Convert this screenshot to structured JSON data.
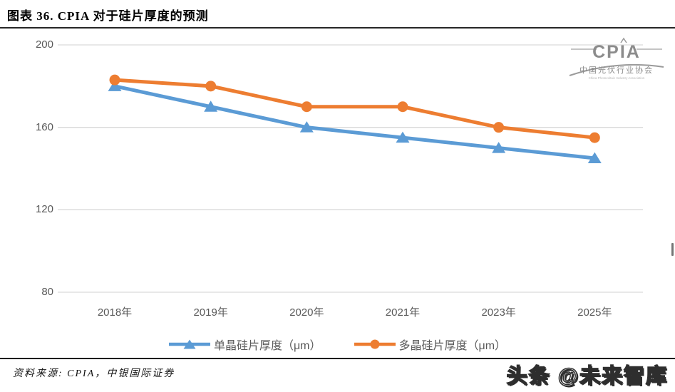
{
  "header": {
    "title": "图表 36. CPIA 对于硅片厚度的预测"
  },
  "logo": {
    "name": "CPIA",
    "subtitle": "中国光伏行业协会",
    "subtext": "China Photovoltaic Industry Association"
  },
  "chart_data": {
    "type": "line",
    "title": "CPIA 对于硅片厚度的预测",
    "categories": [
      "2018年",
      "2019年",
      "2020年",
      "2021年",
      "2023年",
      "2025年"
    ],
    "series": [
      {
        "name": "单晶硅片厚度（μm）",
        "values": [
          180,
          170,
          160,
          155,
          150,
          145
        ],
        "color": "#5B9BD5",
        "marker": "triangle"
      },
      {
        "name": "多晶硅片厚度（μm）",
        "values": [
          183,
          180,
          170,
          170,
          160,
          155
        ],
        "color": "#ED7D31",
        "marker": "circle"
      }
    ],
    "xlabel": "",
    "ylabel": "",
    "ylim": [
      80,
      200
    ],
    "yticks": [
      200,
      160,
      120,
      80
    ],
    "grid": true,
    "legend_position": "bottom",
    "colors": {
      "gridline": "#D9D9D9",
      "axis_label": "#595959"
    }
  },
  "footer": {
    "source": "资料来源: CPIA，中银国际证券",
    "watermark": "头条 @未来智库"
  }
}
